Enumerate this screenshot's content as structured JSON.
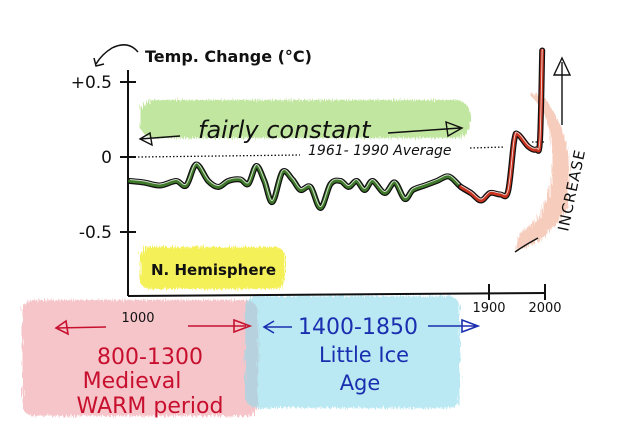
{
  "chart_data": {
    "type": "line",
    "ylabel": "Temp. Change (°C)",
    "yticks": [
      {
        "value": 0.5,
        "label": "+0.5"
      },
      {
        "value": 0,
        "label": "0"
      },
      {
        "value": -0.5,
        "label": "-0.5"
      }
    ],
    "xticks": [
      {
        "value": 1000,
        "label": "1000"
      },
      {
        "value": 1900,
        "label": "1900"
      },
      {
        "value": 2000,
        "label": "2000"
      }
    ],
    "xlim": [
      1000,
      2000
    ],
    "ylim": [
      -0.8,
      0.75
    ],
    "grid": false,
    "reference_line": {
      "value": 0,
      "label": "1961- 1990 Average"
    },
    "series": [
      {
        "color": "#3f7a2a",
        "x": [
          1005,
          1040,
          1080,
          1120,
          1145,
          1170,
          1200,
          1225,
          1250,
          1280,
          1300,
          1320,
          1340,
          1360,
          1385,
          1410,
          1430,
          1455,
          1480,
          1505,
          1530,
          1550,
          1570,
          1590,
          1610,
          1640,
          1665,
          1690,
          1710,
          1740,
          1770,
          1800,
          1830,
          1855
        ],
        "y": [
          -0.16,
          -0.17,
          -0.19,
          -0.16,
          -0.19,
          -0.05,
          -0.16,
          -0.2,
          -0.16,
          -0.15,
          -0.18,
          -0.06,
          -0.16,
          -0.3,
          -0.1,
          -0.15,
          -0.22,
          -0.2,
          -0.34,
          -0.18,
          -0.16,
          -0.2,
          -0.16,
          -0.22,
          -0.16,
          -0.24,
          -0.17,
          -0.28,
          -0.22,
          -0.19,
          -0.16,
          -0.13,
          -0.2,
          -0.24
        ]
      },
      {
        "color": "#c8321e",
        "x": [
          1830,
          1855,
          1880,
          1902,
          1920,
          1934,
          1945,
          1952,
          1970,
          1984,
          1991,
          1995
        ],
        "y": [
          -0.2,
          -0.24,
          -0.29,
          -0.24,
          -0.25,
          -0.23,
          0.11,
          0.15,
          0.07,
          0.05,
          0.11,
          0.71
        ]
      }
    ],
    "annotations": {
      "fairly_constant": "fairly constant",
      "increase": "INCREASE",
      "hemisphere": "N. Hemisphere",
      "medieval_range": "800-1300",
      "medieval_line1": "Medieval",
      "medieval_line2": "WARM period",
      "ice_range": "1400-1850",
      "ice_line1": "Little Ice",
      "ice_line2": "Age"
    },
    "colors": {
      "green_highlight": "#a8dc78",
      "yellow_highlight": "#f2ee3a",
      "pink_highlight": "#f0a0a8",
      "cyan_highlight": "#8fdcec",
      "orange_highlight": "#f3b8a0",
      "medieval_text": "#c8102e",
      "ice_text": "#1a2fb0"
    }
  }
}
